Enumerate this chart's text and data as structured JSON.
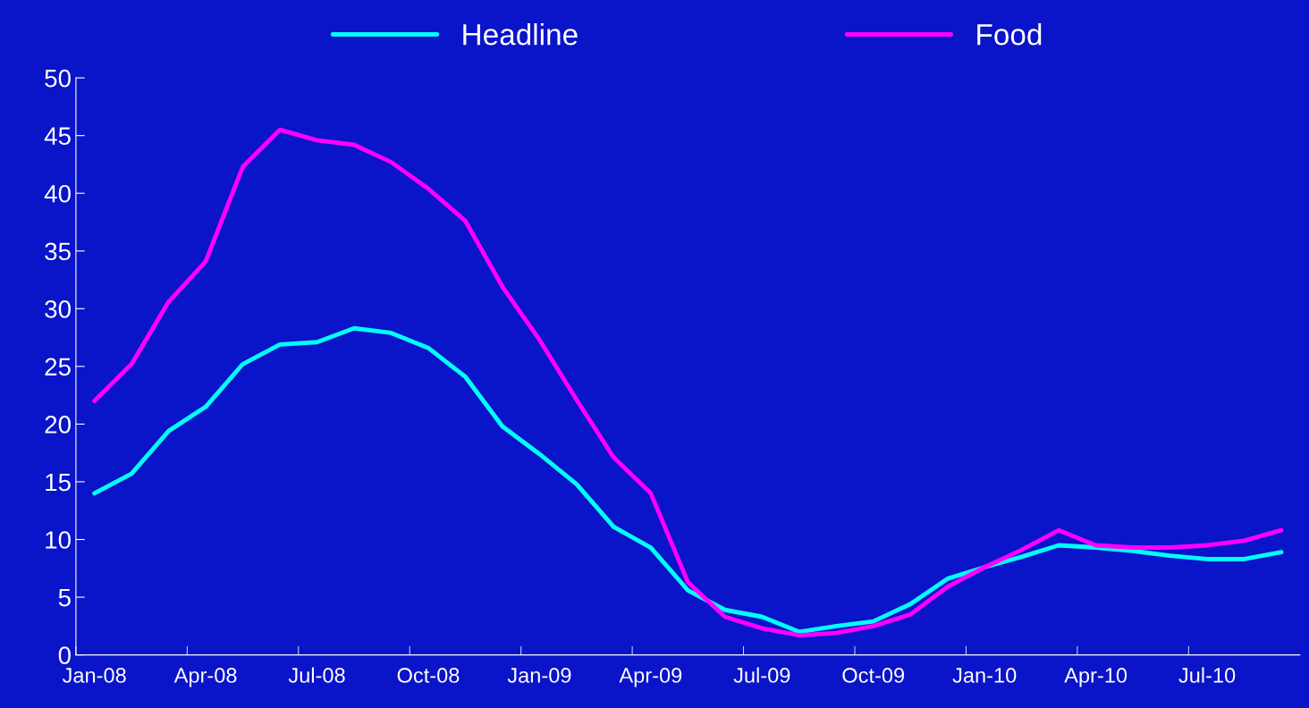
{
  "chart_data": {
    "type": "line",
    "categories": [
      "Jan-08",
      null,
      null,
      "Apr-08",
      null,
      null,
      "Jul-08",
      null,
      null,
      "Oct-08",
      null,
      null,
      "Jan-09",
      null,
      null,
      "Apr-09",
      null,
      null,
      "Jul-09",
      null,
      null,
      "Oct-09",
      null,
      null,
      "Jan-10",
      null,
      null,
      "Apr-10",
      null,
      null,
      "Jul-10",
      null,
      null
    ],
    "series": [
      {
        "name": "Headline",
        "color": "#00ffff",
        "values": [
          14.0,
          15.7,
          19.4,
          21.5,
          25.2,
          26.9,
          27.1,
          28.3,
          27.9,
          26.6,
          24.1,
          19.8,
          17.4,
          14.8,
          11.1,
          9.3,
          5.6,
          3.9,
          3.3,
          2.0,
          2.5,
          2.9,
          4.4,
          6.6,
          7.6,
          8.5,
          9.5,
          9.3,
          9.0,
          8.6,
          8.3,
          8.3,
          8.9
        ]
      },
      {
        "name": "Food",
        "color": "#ff00ff",
        "values": [
          22.0,
          25.2,
          30.6,
          34.1,
          42.3,
          45.5,
          44.6,
          44.2,
          42.7,
          40.4,
          37.6,
          31.9,
          27.3,
          22.1,
          17.1,
          14.0,
          6.3,
          3.3,
          2.3,
          1.7,
          1.9,
          2.5,
          3.5,
          5.9,
          7.6,
          9.1,
          10.8,
          9.5,
          9.3,
          9.3,
          9.5,
          9.9,
          10.8
        ]
      }
    ],
    "ylim": [
      0,
      50
    ],
    "yticks": [
      0,
      5,
      10,
      15,
      20,
      25,
      30,
      35,
      40,
      45,
      50
    ],
    "grid": false,
    "legend": "top",
    "marker": "none",
    "line_style": "solid"
  }
}
